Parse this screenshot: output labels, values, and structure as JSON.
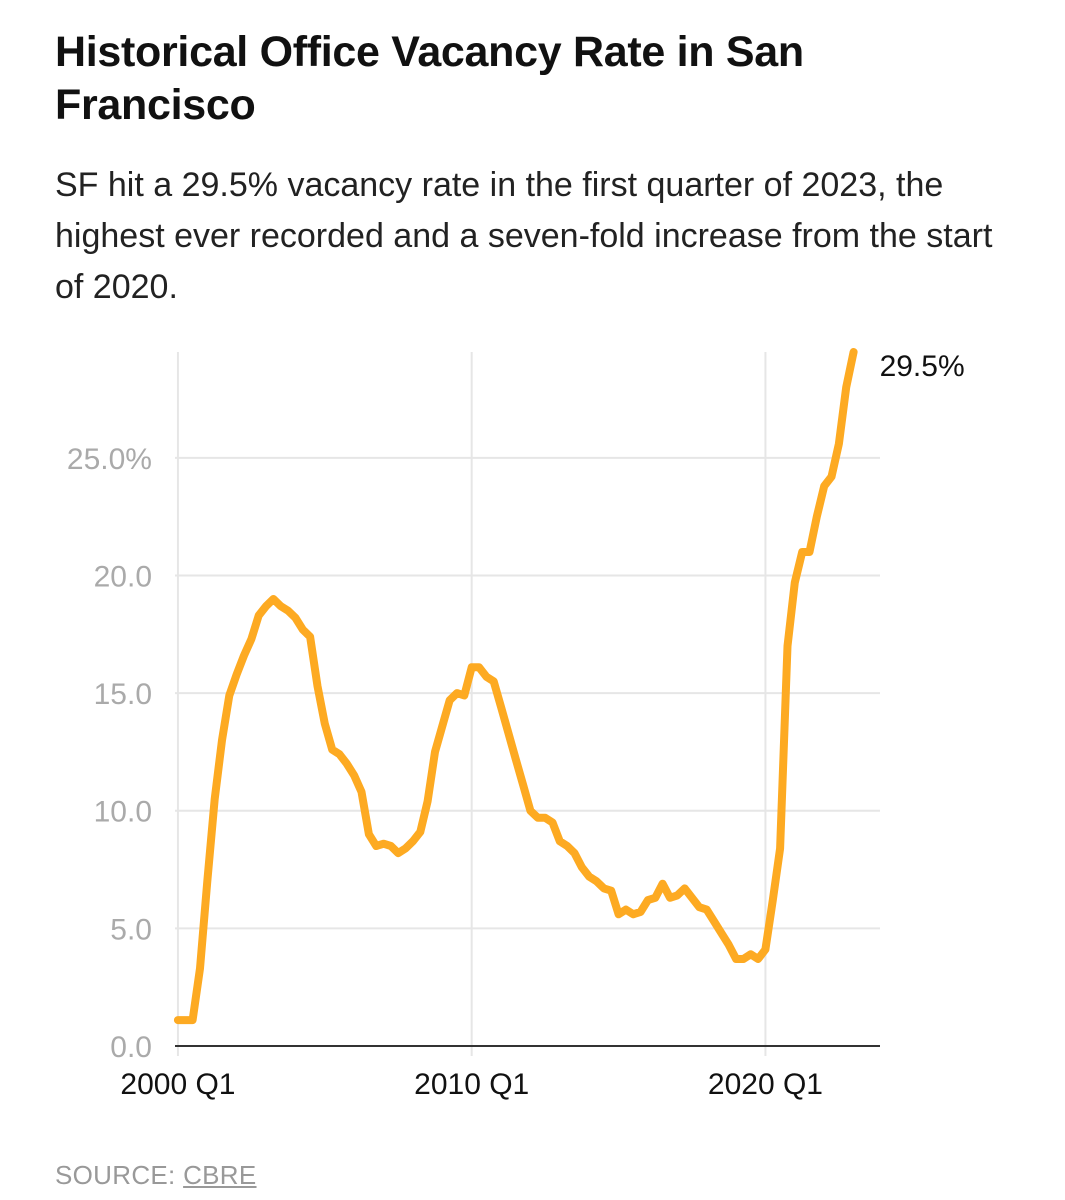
{
  "title": "Historical Office Vacancy Rate in San Francisco",
  "subtitle": "SF hit a 29.5% vacancy rate in the first quarter of 2023, the highest ever recorded and a seven-fold increase from the start of 2020.",
  "source": {
    "label": "SOURCE:",
    "link_text": "CBRE"
  },
  "colors": {
    "line": "#FDAA22",
    "grid": "#E6E6E6",
    "axis": "#333333",
    "tick_label": "#AAAAAA",
    "x_label": "#111111"
  },
  "chart_data": {
    "type": "line",
    "title": "Historical Office Vacancy Rate in San Francisco",
    "xlabel": "",
    "ylabel": "",
    "grid": "on",
    "y_ticks": [
      0,
      5,
      10,
      15,
      20,
      25
    ],
    "y_tick_labels": [
      "0.0",
      "5.0",
      "10.0",
      "15.0",
      "20.0",
      "25.0%"
    ],
    "x_ticks": [
      2000.0,
      2010.0,
      2020.0
    ],
    "x_tick_labels": [
      "2000 Q1",
      "2010 Q1",
      "2020 Q1"
    ],
    "xlim": [
      1999.9,
      2023.9
    ],
    "ylim": [
      0,
      29.5
    ],
    "end_label": "29.5%",
    "series": [
      {
        "x": [
          2000.0,
          2000.25,
          2000.5,
          2000.75,
          2001.0,
          2001.25,
          2001.5,
          2001.75,
          2002.0,
          2002.25,
          2002.5,
          2002.75,
          2003.0,
          2003.25,
          2003.5,
          2003.75,
          2004.0,
          2004.25,
          2004.5,
          2004.75,
          2005.0,
          2005.25,
          2005.5,
          2005.75,
          2006.0,
          2006.25,
          2006.5,
          2006.75,
          2007.0,
          2007.25,
          2007.5,
          2007.75,
          2008.0,
          2008.25,
          2008.5,
          2008.75,
          2009.0,
          2009.25,
          2009.5,
          2009.75,
          2010.0,
          2010.25,
          2010.5,
          2010.75,
          2011.0,
          2011.25,
          2011.5,
          2011.75,
          2012.0,
          2012.25,
          2012.5,
          2012.75,
          2013.0,
          2013.25,
          2013.5,
          2013.75,
          2014.0,
          2014.25,
          2014.5,
          2014.75,
          2015.0,
          2015.25,
          2015.5,
          2015.75,
          2016.0,
          2016.25,
          2016.5,
          2016.75,
          2017.0,
          2017.25,
          2017.5,
          2017.75,
          2018.0,
          2018.25,
          2018.5,
          2018.75,
          2019.0,
          2019.25,
          2019.5,
          2019.75,
          2020.0,
          2020.25,
          2020.5,
          2020.75,
          2021.0,
          2021.25,
          2021.5,
          2021.75,
          2022.0,
          2022.25,
          2022.5,
          2022.75,
          2023.0
        ],
        "values": [
          1.1,
          1.1,
          1.1,
          3.3,
          7.0,
          10.5,
          13.0,
          14.9,
          15.8,
          16.6,
          17.3,
          18.3,
          18.7,
          19.0,
          18.7,
          18.5,
          18.2,
          17.7,
          17.4,
          15.3,
          13.7,
          12.6,
          12.4,
          12.0,
          11.5,
          10.8,
          9.0,
          8.5,
          8.6,
          8.5,
          8.2,
          8.4,
          8.7,
          9.1,
          10.4,
          12.5,
          13.6,
          14.7,
          15.0,
          14.9,
          16.1,
          16.1,
          15.7,
          15.5,
          14.4,
          13.3,
          12.2,
          11.1,
          10.0,
          9.7,
          9.7,
          9.5,
          8.7,
          8.5,
          8.2,
          7.6,
          7.2,
          7.0,
          6.7,
          6.6,
          5.6,
          5.8,
          5.6,
          5.7,
          6.2,
          6.3,
          6.9,
          6.3,
          6.4,
          6.7,
          6.3,
          5.9,
          5.8,
          5.3,
          4.8,
          4.3,
          3.7,
          3.7,
          3.9,
          3.7,
          4.1,
          6.2,
          8.4,
          17.0,
          19.7,
          21.0,
          21.0,
          22.5,
          23.8,
          24.2,
          25.6,
          28.0,
          29.5
        ]
      }
    ]
  }
}
